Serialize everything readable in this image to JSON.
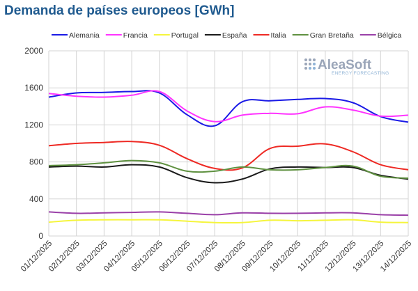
{
  "title": "Demanda de países europeos [GWh]",
  "logo": {
    "name": "AleaSoft",
    "subtitle": "ENERGY FORECASTING"
  },
  "colors": {
    "Alemania": "#1a1ae6",
    "Francia": "#ff33ff",
    "Portugal": "#f5f53d",
    "España": "#1a1a1a",
    "Italia": "#ee2a24",
    "Gran Bretaña": "#5f9140",
    "Bélgica": "#9a40a8",
    "grid": "#d3d3d3",
    "title": "#1f5a8f"
  },
  "chart_data": {
    "type": "line",
    "title": "Demanda de países europeos [GWh]",
    "xlabel": "",
    "ylabel": "",
    "ylim": [
      0,
      2000
    ],
    "yticks": [
      0,
      400,
      800,
      1200,
      1600,
      2000
    ],
    "grid": true,
    "legend_position": "top",
    "x": [
      "01/12/2025",
      "02/12/2025",
      "03/12/2025",
      "04/12/2025",
      "05/12/2025",
      "06/12/2025",
      "07/12/2025",
      "08/12/2025",
      "09/12/2025",
      "10/12/2025",
      "11/12/2025",
      "12/12/2025",
      "13/12/2025",
      "14/12/2025"
    ],
    "series": [
      {
        "name": "Alemania",
        "values": [
          1500,
          1545,
          1550,
          1560,
          1545,
          1310,
          1190,
          1450,
          1460,
          1475,
          1485,
          1440,
          1290,
          1230
        ]
      },
      {
        "name": "Francia",
        "values": [
          1540,
          1510,
          1500,
          1520,
          1560,
          1350,
          1235,
          1305,
          1325,
          1320,
          1395,
          1360,
          1295,
          1305
        ]
      },
      {
        "name": "Portugal",
        "values": [
          150,
          170,
          175,
          175,
          175,
          160,
          145,
          145,
          170,
          165,
          170,
          175,
          150,
          145
        ]
      },
      {
        "name": "España",
        "values": [
          745,
          755,
          745,
          770,
          745,
          630,
          575,
          615,
          725,
          745,
          740,
          740,
          655,
          615
        ]
      },
      {
        "name": "Italia",
        "values": [
          975,
          1000,
          1010,
          1020,
          980,
          835,
          730,
          735,
          945,
          970,
          995,
          910,
          770,
          715
        ]
      },
      {
        "name": "Gran Bretaña",
        "values": [
          760,
          770,
          790,
          815,
          790,
          700,
          700,
          745,
          715,
          715,
          740,
          755,
          645,
          625
        ]
      },
      {
        "name": "Bélgica",
        "values": [
          260,
          245,
          250,
          255,
          260,
          245,
          230,
          250,
          245,
          245,
          250,
          250,
          230,
          225
        ]
      }
    ]
  }
}
